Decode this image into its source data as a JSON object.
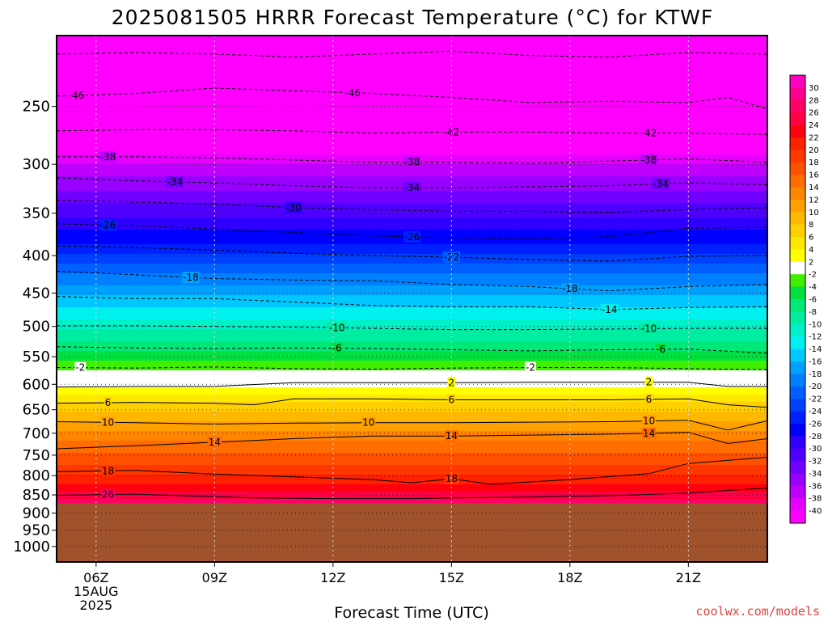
{
  "chart_data": {
    "type": "heatmap",
    "title": "2025081505 HRRR Forecast Temperature (°C) for KTWF",
    "xlabel": "Forecast Time (UTC)",
    "ylabel": "",
    "x_ticks": [
      "06Z",
      "09Z",
      "12Z",
      "15Z",
      "18Z",
      "21Z"
    ],
    "x_first_tick_date": [
      "15AUG",
      "2025"
    ],
    "x_range_hours": [
      5.0,
      23.0
    ],
    "y_ticks": [
      250,
      300,
      350,
      400,
      450,
      500,
      550,
      600,
      650,
      700,
      750,
      800,
      850,
      900,
      950,
      1000
    ],
    "y_range_hPa": [
      200,
      1050
    ],
    "y_scale": "log",
    "ground_pressure_hPa": 873,
    "ground_color": "#a0522d",
    "grid": true,
    "colorbar": {
      "position": "right",
      "levels": [
        30,
        28,
        26,
        24,
        22,
        20,
        18,
        16,
        14,
        12,
        10,
        8,
        6,
        4,
        2,
        -2,
        -4,
        -6,
        -8,
        -10,
        -12,
        -14,
        -16,
        -18,
        -20,
        -22,
        -24,
        -26,
        -28,
        -30,
        -32,
        -34,
        -36,
        -38,
        -40
      ],
      "colors": [
        "#ff00c0",
        "#ff0090",
        "#ff0066",
        "#ff0044",
        "#ff0010",
        "#ff2000",
        "#ff3800",
        "#ff5000",
        "#ff6c00",
        "#ff8400",
        "#ffa000",
        "#ffb800",
        "#ffd000",
        "#ffe800",
        "#ffff00",
        "#ffffff",
        "#40ee00",
        "#00e040",
        "#00e878",
        "#00eca0",
        "#00f0c8",
        "#00f0f0",
        "#00c8ff",
        "#00a0ff",
        "#0080ff",
        "#0060ff",
        "#0040ff",
        "#0020ff",
        "#0000ff",
        "#3000ff",
        "#5000ff",
        "#7000ff",
        "#9800ff",
        "#c000ff",
        "#e800ff",
        "#ff00ff"
      ]
    },
    "isotherm_profile": [
      {
        "temp": 30,
        "p": 900
      },
      {
        "temp": 26,
        "p": 858
      },
      {
        "temp": 22,
        "p": 825
      },
      {
        "temp": 18,
        "p": 775
      },
      {
        "temp": 14,
        "p": 715
      },
      {
        "temp": 10,
        "p": 672
      },
      {
        "temp": 6,
        "p": 635
      },
      {
        "temp": 2,
        "p": 604
      },
      {
        "temp": -2,
        "p": 575
      },
      {
        "temp": -6,
        "p": 540
      },
      {
        "temp": -10,
        "p": 505
      },
      {
        "temp": -14,
        "p": 470
      },
      {
        "temp": -18,
        "p": 438
      },
      {
        "temp": -22,
        "p": 410
      },
      {
        "temp": -26,
        "p": 385
      },
      {
        "temp": -30,
        "p": 355
      },
      {
        "temp": -34,
        "p": 325
      },
      {
        "temp": -38,
        "p": 300
      },
      {
        "temp": -42,
        "p": 280
      },
      {
        "temp": -46,
        "p": 248
      },
      {
        "temp": -50,
        "p": 220
      }
    ],
    "contours": [
      {
        "value": 26,
        "label": "26",
        "dashed": false,
        "color": "#000000",
        "points": [
          [
            5,
            851
          ],
          [
            7,
            848
          ],
          [
            9,
            855
          ],
          [
            10,
            858
          ],
          [
            12,
            860
          ],
          [
            14,
            860
          ],
          [
            15,
            858
          ],
          [
            17,
            856
          ],
          [
            19,
            852
          ],
          [
            21,
            845
          ],
          [
            22,
            838
          ],
          [
            23,
            832
          ]
        ],
        "labels_at": [
          6.3
        ]
      },
      {
        "value": 18,
        "label": "18",
        "dashed": false,
        "color": "#000000",
        "points": [
          [
            5,
            790
          ],
          [
            7,
            787
          ],
          [
            9,
            796
          ],
          [
            11,
            803
          ],
          [
            13,
            810
          ],
          [
            14,
            818
          ],
          [
            15,
            808
          ],
          [
            16,
            822
          ],
          [
            18,
            810
          ],
          [
            20,
            795
          ],
          [
            21,
            770
          ],
          [
            23,
            755
          ]
        ],
        "labels_at": [
          6.3,
          15.0
        ]
      },
      {
        "value": 14,
        "label": "14",
        "dashed": false,
        "color": "#000000",
        "points": [
          [
            5,
            735
          ],
          [
            7,
            728
          ],
          [
            9,
            720
          ],
          [
            11,
            712
          ],
          [
            13,
            706
          ],
          [
            15,
            706
          ],
          [
            17,
            704
          ],
          [
            19,
            702
          ],
          [
            21,
            698
          ],
          [
            22,
            723
          ],
          [
            23,
            712
          ]
        ],
        "labels_at": [
          9.0,
          15.0,
          20.0
        ]
      },
      {
        "value": 10,
        "label": "10",
        "dashed": false,
        "color": "#000000",
        "points": [
          [
            5,
            675
          ],
          [
            7,
            677
          ],
          [
            9,
            680
          ],
          [
            11,
            678
          ],
          [
            13,
            677
          ],
          [
            15,
            677
          ],
          [
            17,
            676
          ],
          [
            19,
            675
          ],
          [
            21,
            672
          ],
          [
            22,
            693
          ],
          [
            23,
            673
          ]
        ],
        "labels_at": [
          6.3,
          12.9,
          20.0
        ]
      },
      {
        "value": 6,
        "label": "6",
        "dashed": false,
        "color": "#000000",
        "points": [
          [
            5,
            637
          ],
          [
            7,
            635
          ],
          [
            9,
            637
          ],
          [
            10,
            640
          ],
          [
            11,
            628
          ],
          [
            13,
            628
          ],
          [
            15,
            630
          ],
          [
            17,
            630
          ],
          [
            19,
            630
          ],
          [
            21,
            628
          ],
          [
            22,
            640
          ],
          [
            23,
            645
          ]
        ],
        "labels_at": [
          6.3,
          15.0,
          20.0
        ]
      },
      {
        "value": 2,
        "label": "2",
        "dashed": false,
        "color": "#000000",
        "points": [
          [
            5,
            605
          ],
          [
            7,
            604
          ],
          [
            9,
            604
          ],
          [
            11,
            597
          ],
          [
            13,
            597
          ],
          [
            15,
            597
          ],
          [
            17,
            596
          ],
          [
            19,
            596
          ],
          [
            21,
            596
          ],
          [
            22,
            604
          ],
          [
            23,
            604
          ]
        ],
        "labels_at": [
          15.0,
          20.0
        ]
      },
      {
        "value": -2,
        "label": "-2",
        "dashed": true,
        "color": "#000000",
        "points": [
          [
            5,
            569
          ],
          [
            7,
            570
          ],
          [
            9,
            568
          ],
          [
            11,
            571
          ],
          [
            13,
            572
          ],
          [
            15,
            570
          ],
          [
            17,
            569
          ],
          [
            19,
            569
          ],
          [
            21,
            571
          ],
          [
            23,
            573
          ]
        ],
        "labels_at": [
          5.6,
          17.0
        ]
      },
      {
        "value": -6,
        "label": "-6",
        "dashed": true,
        "color": "#000000",
        "points": [
          [
            5,
            533
          ],
          [
            7,
            535
          ],
          [
            9,
            536
          ],
          [
            11,
            535
          ],
          [
            13,
            536
          ],
          [
            15,
            538
          ],
          [
            17,
            540
          ],
          [
            19,
            538
          ],
          [
            21,
            537
          ],
          [
            23,
            544
          ]
        ],
        "labels_at": [
          12.1,
          20.3
        ]
      },
      {
        "value": -10,
        "label": "-10",
        "dashed": true,
        "color": "#000000",
        "points": [
          [
            5,
            499
          ],
          [
            7,
            499
          ],
          [
            9,
            500
          ],
          [
            11,
            501
          ],
          [
            13,
            503
          ],
          [
            15,
            505
          ],
          [
            17,
            505
          ],
          [
            19,
            504
          ],
          [
            21,
            503
          ],
          [
            23,
            503
          ]
        ],
        "labels_at": [
          12.1,
          20.0
        ]
      },
      {
        "value": -14,
        "label": "-14",
        "dashed": true,
        "color": "#000000",
        "points": [
          [
            5,
            455
          ],
          [
            7,
            458
          ],
          [
            9,
            458
          ],
          [
            11,
            463
          ],
          [
            13,
            468
          ],
          [
            15,
            470
          ],
          [
            17,
            470
          ],
          [
            19,
            474
          ],
          [
            21,
            471
          ],
          [
            23,
            470
          ]
        ],
        "labels_at": [
          19.0
        ]
      },
      {
        "value": -18,
        "label": "-18",
        "dashed": true,
        "color": "#000000",
        "points": [
          [
            5,
            420
          ],
          [
            7,
            425
          ],
          [
            9,
            430
          ],
          [
            11,
            432
          ],
          [
            13,
            433
          ],
          [
            15,
            438
          ],
          [
            17,
            441
          ],
          [
            19,
            447
          ],
          [
            21,
            441
          ],
          [
            23,
            438
          ]
        ],
        "labels_at": [
          8.4,
          18.0
        ]
      },
      {
        "value": -22,
        "label": "-22",
        "dashed": true,
        "color": "#000000",
        "points": [
          [
            5,
            388
          ],
          [
            7,
            390
          ],
          [
            9,
            393
          ],
          [
            11,
            397
          ],
          [
            13,
            400
          ],
          [
            15,
            402
          ],
          [
            17,
            405
          ],
          [
            19,
            407
          ],
          [
            21,
            401
          ],
          [
            23,
            400
          ]
        ],
        "labels_at": [
          15.0
        ]
      },
      {
        "value": -26,
        "label": "-26",
        "dashed": true,
        "color": "#000000",
        "points": [
          [
            5,
            362
          ],
          [
            7,
            364
          ],
          [
            9,
            368
          ],
          [
            11,
            372
          ],
          [
            13,
            376
          ],
          [
            15,
            378
          ],
          [
            17,
            379
          ],
          [
            19,
            377
          ],
          [
            21,
            367
          ],
          [
            23,
            366
          ]
        ],
        "labels_at": [
          6.3,
          14.0
        ]
      },
      {
        "value": -30,
        "label": "-30",
        "dashed": true,
        "color": "#000000",
        "points": [
          [
            5,
            336
          ],
          [
            7,
            338
          ],
          [
            9,
            340
          ],
          [
            11,
            344
          ],
          [
            13,
            346
          ],
          [
            15,
            348
          ],
          [
            17,
            348
          ],
          [
            19,
            349
          ],
          [
            21,
            346
          ],
          [
            23,
            344
          ]
        ],
        "labels_at": [
          11.0
        ]
      },
      {
        "value": -34,
        "label": "-34",
        "dashed": true,
        "color": "#000000",
        "points": [
          [
            5,
            313
          ],
          [
            7,
            316
          ],
          [
            9,
            318
          ],
          [
            11,
            321
          ],
          [
            13,
            323
          ],
          [
            15,
            323
          ],
          [
            17,
            322
          ],
          [
            19,
            321
          ],
          [
            21,
            318
          ],
          [
            23,
            320
          ]
        ],
        "labels_at": [
          8.0,
          14.0,
          20.3
        ]
      },
      {
        "value": -38,
        "label": "-38",
        "dashed": true,
        "color": "#000000",
        "points": [
          [
            5,
            293
          ],
          [
            7,
            293
          ],
          [
            9,
            294
          ],
          [
            11,
            296
          ],
          [
            13,
            298
          ],
          [
            15,
            298
          ],
          [
            17,
            299
          ],
          [
            19,
            297
          ],
          [
            21,
            295
          ],
          [
            23,
            298
          ]
        ],
        "labels_at": [
          6.3,
          14.0,
          20.0
        ]
      },
      {
        "value": -42,
        "label": "-42",
        "dashed": true,
        "color": "#000000",
        "points": [
          [
            5,
            270
          ],
          [
            7,
            269
          ],
          [
            9,
            269
          ],
          [
            11,
            270
          ],
          [
            13,
            272
          ],
          [
            15,
            271
          ],
          [
            17,
            271
          ],
          [
            19,
            272
          ],
          [
            21,
            272
          ],
          [
            23,
            273
          ]
        ],
        "labels_at": [
          15.0,
          20.0
        ]
      },
      {
        "value": -46,
        "label": "-46",
        "dashed": true,
        "color": "#000000",
        "points": [
          [
            5,
            242
          ],
          [
            7,
            240
          ],
          [
            9,
            236
          ],
          [
            11,
            238
          ],
          [
            13,
            240
          ],
          [
            15,
            243
          ],
          [
            17,
            247
          ],
          [
            19,
            246
          ],
          [
            21,
            247
          ],
          [
            22,
            243
          ],
          [
            23,
            252
          ]
        ],
        "labels_at": [
          5.5,
          12.5
        ]
      },
      {
        "value": -50,
        "label": "",
        "dashed": true,
        "color": "#000000",
        "points": [
          [
            5,
            212
          ],
          [
            7,
            211
          ],
          [
            9,
            212
          ],
          [
            11,
            214
          ],
          [
            13,
            212
          ],
          [
            15,
            210
          ],
          [
            17,
            213
          ],
          [
            19,
            214
          ],
          [
            21,
            211
          ],
          [
            23,
            212
          ]
        ],
        "labels_at": []
      }
    ]
  },
  "credit": "coolwx.com/models"
}
